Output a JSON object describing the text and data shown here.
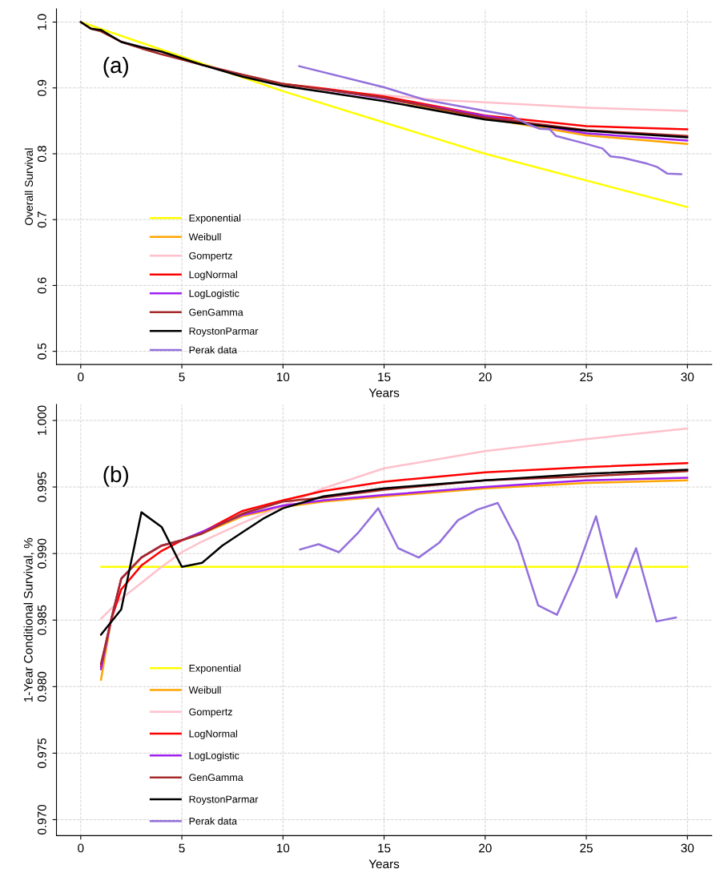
{
  "chart_data": [
    {
      "type": "line",
      "xlabel": "Years",
      "ylabel": "Overall Survival",
      "annotations": [
        "(a)"
      ],
      "xlim": [
        -1.2,
        31.2
      ],
      "xticks": [
        0,
        5,
        10,
        15,
        20,
        25,
        30
      ],
      "ylim": [
        0.48,
        1.02
      ],
      "yticks": [
        0.5,
        0.6,
        0.7,
        0.8,
        0.9,
        {
          "value": 1.0,
          "label": "1.0"
        }
      ],
      "grid": true,
      "legend": "bottom left",
      "series": [
        {
          "name": "Exponential",
          "color": "#ffff00",
          "x": [
            0,
            10,
            20,
            30
          ],
          "values": [
            1.0,
            0.895,
            0.8,
            0.719
          ]
        },
        {
          "name": "Weibull",
          "color": "#ffa500",
          "x": [
            15,
            20,
            25,
            30
          ],
          "values": [
            0.884,
            0.854,
            0.828,
            0.815
          ]
        },
        {
          "name": "Gompertz",
          "color": "#ffc0cb",
          "x": [
            0,
            0.5,
            1,
            2,
            3,
            4,
            5,
            6,
            8,
            10,
            12,
            15,
            17.5,
            20,
            25,
            30
          ],
          "values": [
            1.0,
            0.99,
            0.986,
            0.97,
            0.96,
            0.951,
            0.943,
            0.935,
            0.92,
            0.906,
            0.897,
            0.889,
            0.882,
            0.878,
            0.87,
            0.865
          ]
        },
        {
          "name": "LogNormal",
          "color": "#ff0000",
          "x": [
            10,
            12,
            15,
            20,
            25,
            30
          ],
          "values": [
            0.906,
            0.899,
            0.887,
            0.858,
            0.842,
            0.837
          ]
        },
        {
          "name": "LogLogistic",
          "color": "#a020f0",
          "x": [
            12,
            15,
            25,
            30
          ],
          "values": [
            0.898,
            0.884,
            0.831,
            0.82
          ]
        },
        {
          "name": "GenGamma",
          "color": "#a52a2a",
          "x": [
            0,
            0.5,
            1,
            2,
            3,
            4,
            5,
            6,
            8,
            10,
            12,
            15,
            20,
            25,
            30
          ],
          "values": [
            1.0,
            0.99,
            0.986,
            0.97,
            0.96,
            0.951,
            0.943,
            0.935,
            0.92,
            0.906,
            0.898,
            0.885,
            0.855,
            0.836,
            0.827
          ]
        },
        {
          "name": "RoystonParmar",
          "color": "#000000",
          "x": [
            0,
            0.5,
            1,
            2,
            3,
            4,
            5,
            6,
            8,
            10,
            12,
            15,
            20,
            25,
            30
          ],
          "values": [
            1.0,
            0.99,
            0.988,
            0.97,
            0.962,
            0.955,
            0.945,
            0.935,
            0.917,
            0.903,
            0.894,
            0.88,
            0.852,
            0.835,
            0.825
          ]
        },
        {
          "name": "Perak data",
          "color": "#9370db",
          "x": [
            10.8,
            15,
            17,
            20,
            21.3,
            22.1,
            22.7,
            23.2,
            23.5,
            25,
            25.8,
            26.2,
            26.8,
            28,
            28.5,
            29,
            29.7
          ],
          "values": [
            0.933,
            0.901,
            0.882,
            0.865,
            0.858,
            0.845,
            0.838,
            0.837,
            0.827,
            0.815,
            0.808,
            0.796,
            0.794,
            0.785,
            0.78,
            0.77,
            0.769
          ]
        }
      ]
    },
    {
      "type": "line",
      "xlabel": "Years",
      "ylabel": "1-Year Conditional Survival, %",
      "annotations": [
        "(b)"
      ],
      "xlim": [
        -1.2,
        31.2
      ],
      "xticks": [
        0,
        5,
        10,
        15,
        20,
        25,
        30
      ],
      "ylim": [
        0.9688,
        1.0012
      ],
      "yticks": [
        {
          "value": 0.97,
          "label": "0.970"
        },
        {
          "value": 0.975,
          "label": "0.975"
        },
        {
          "value": 0.98,
          "label": "0.980"
        },
        {
          "value": 0.985,
          "label": "0.985"
        },
        {
          "value": 0.99,
          "label": "0.990"
        },
        {
          "value": 0.995,
          "label": "0.995"
        },
        {
          "value": 1.0,
          "label": "1.000"
        }
      ],
      "grid": true,
      "legend": "bottom left",
      "series": [
        {
          "name": "Exponential",
          "color": "#ffff00",
          "x": [
            1,
            30
          ],
          "values": [
            0.989,
            0.989
          ]
        },
        {
          "name": "Weibull",
          "color": "#ffa500",
          "x": [
            1,
            1.5,
            2,
            3,
            4,
            5,
            6,
            8,
            10,
            12,
            15,
            20,
            25,
            30
          ],
          "values": [
            0.9805,
            0.985,
            0.9881,
            0.9897,
            0.9906,
            0.991,
            0.9915,
            0.9928,
            0.9935,
            0.9939,
            0.9943,
            0.9949,
            0.9953,
            0.9955
          ]
        },
        {
          "name": "Gompertz",
          "color": "#ffc0cb",
          "x": [
            1,
            2,
            3,
            4,
            5,
            6,
            8,
            10,
            12,
            15,
            20,
            25,
            30
          ],
          "values": [
            0.9851,
            0.9866,
            0.9878,
            0.989,
            0.9901,
            0.9909,
            0.9923,
            0.9936,
            0.9949,
            0.9964,
            0.9977,
            0.9986,
            0.9994
          ]
        },
        {
          "name": "LogNormal",
          "color": "#ff0000",
          "x": [
            1,
            1.5,
            2,
            3,
            4,
            5,
            6,
            8,
            10,
            12,
            15,
            20,
            25,
            30
          ],
          "values": [
            0.9815,
            0.985,
            0.9873,
            0.9891,
            0.9902,
            0.991,
            0.9916,
            0.9932,
            0.994,
            0.9947,
            0.9954,
            0.9961,
            0.9965,
            0.9968
          ]
        },
        {
          "name": "LogLogistic",
          "color": "#a020f0",
          "x": [
            1,
            1.5,
            2,
            3,
            4,
            5,
            8,
            10,
            12,
            15,
            20,
            25,
            30
          ],
          "values": [
            0.9813,
            0.985,
            0.9881,
            0.9897,
            0.9906,
            0.991,
            0.9929,
            0.9936,
            0.994,
            0.9944,
            0.995,
            0.9955,
            0.9957
          ]
        },
        {
          "name": "GenGamma",
          "color": "#a52a2a",
          "x": [
            1,
            1.5,
            2,
            3,
            4,
            5,
            6,
            8,
            10,
            12,
            15,
            20,
            25,
            30
          ],
          "values": [
            0.9817,
            0.985,
            0.9881,
            0.9897,
            0.9906,
            0.991,
            0.9915,
            0.993,
            0.9939,
            0.9942,
            0.9948,
            0.9955,
            0.9958,
            0.9962
          ]
        },
        {
          "name": "RoystonParmar",
          "color": "#000000",
          "x": [
            1,
            2,
            3,
            4,
            5,
            6,
            7,
            8,
            9,
            10,
            12,
            15,
            20,
            25,
            30
          ],
          "values": [
            0.9839,
            0.9858,
            0.9931,
            0.992,
            0.989,
            0.9893,
            0.9906,
            0.9916,
            0.9926,
            0.9934,
            0.9943,
            0.9949,
            0.9955,
            0.996,
            0.9963
          ]
        },
        {
          "name": "Perak data",
          "color": "#9370db",
          "x": [
            10.84,
            11.76,
            12.77,
            13.74,
            14.71,
            15.7,
            16.71,
            17.72,
            18.65,
            19.61,
            20.62,
            21.61,
            22.62,
            23.55,
            24.49,
            25.48,
            26.49,
            27.46,
            28.47,
            29.44
          ],
          "values": [
            0.9903,
            0.9907,
            0.9901,
            0.9916,
            0.9934,
            0.9904,
            0.9897,
            0.9908,
            0.9925,
            0.9933,
            0.9938,
            0.9909,
            0.9861,
            0.9854,
            0.9886,
            0.9928,
            0.9867,
            0.9904,
            0.9849,
            0.9852
          ]
        }
      ]
    }
  ]
}
